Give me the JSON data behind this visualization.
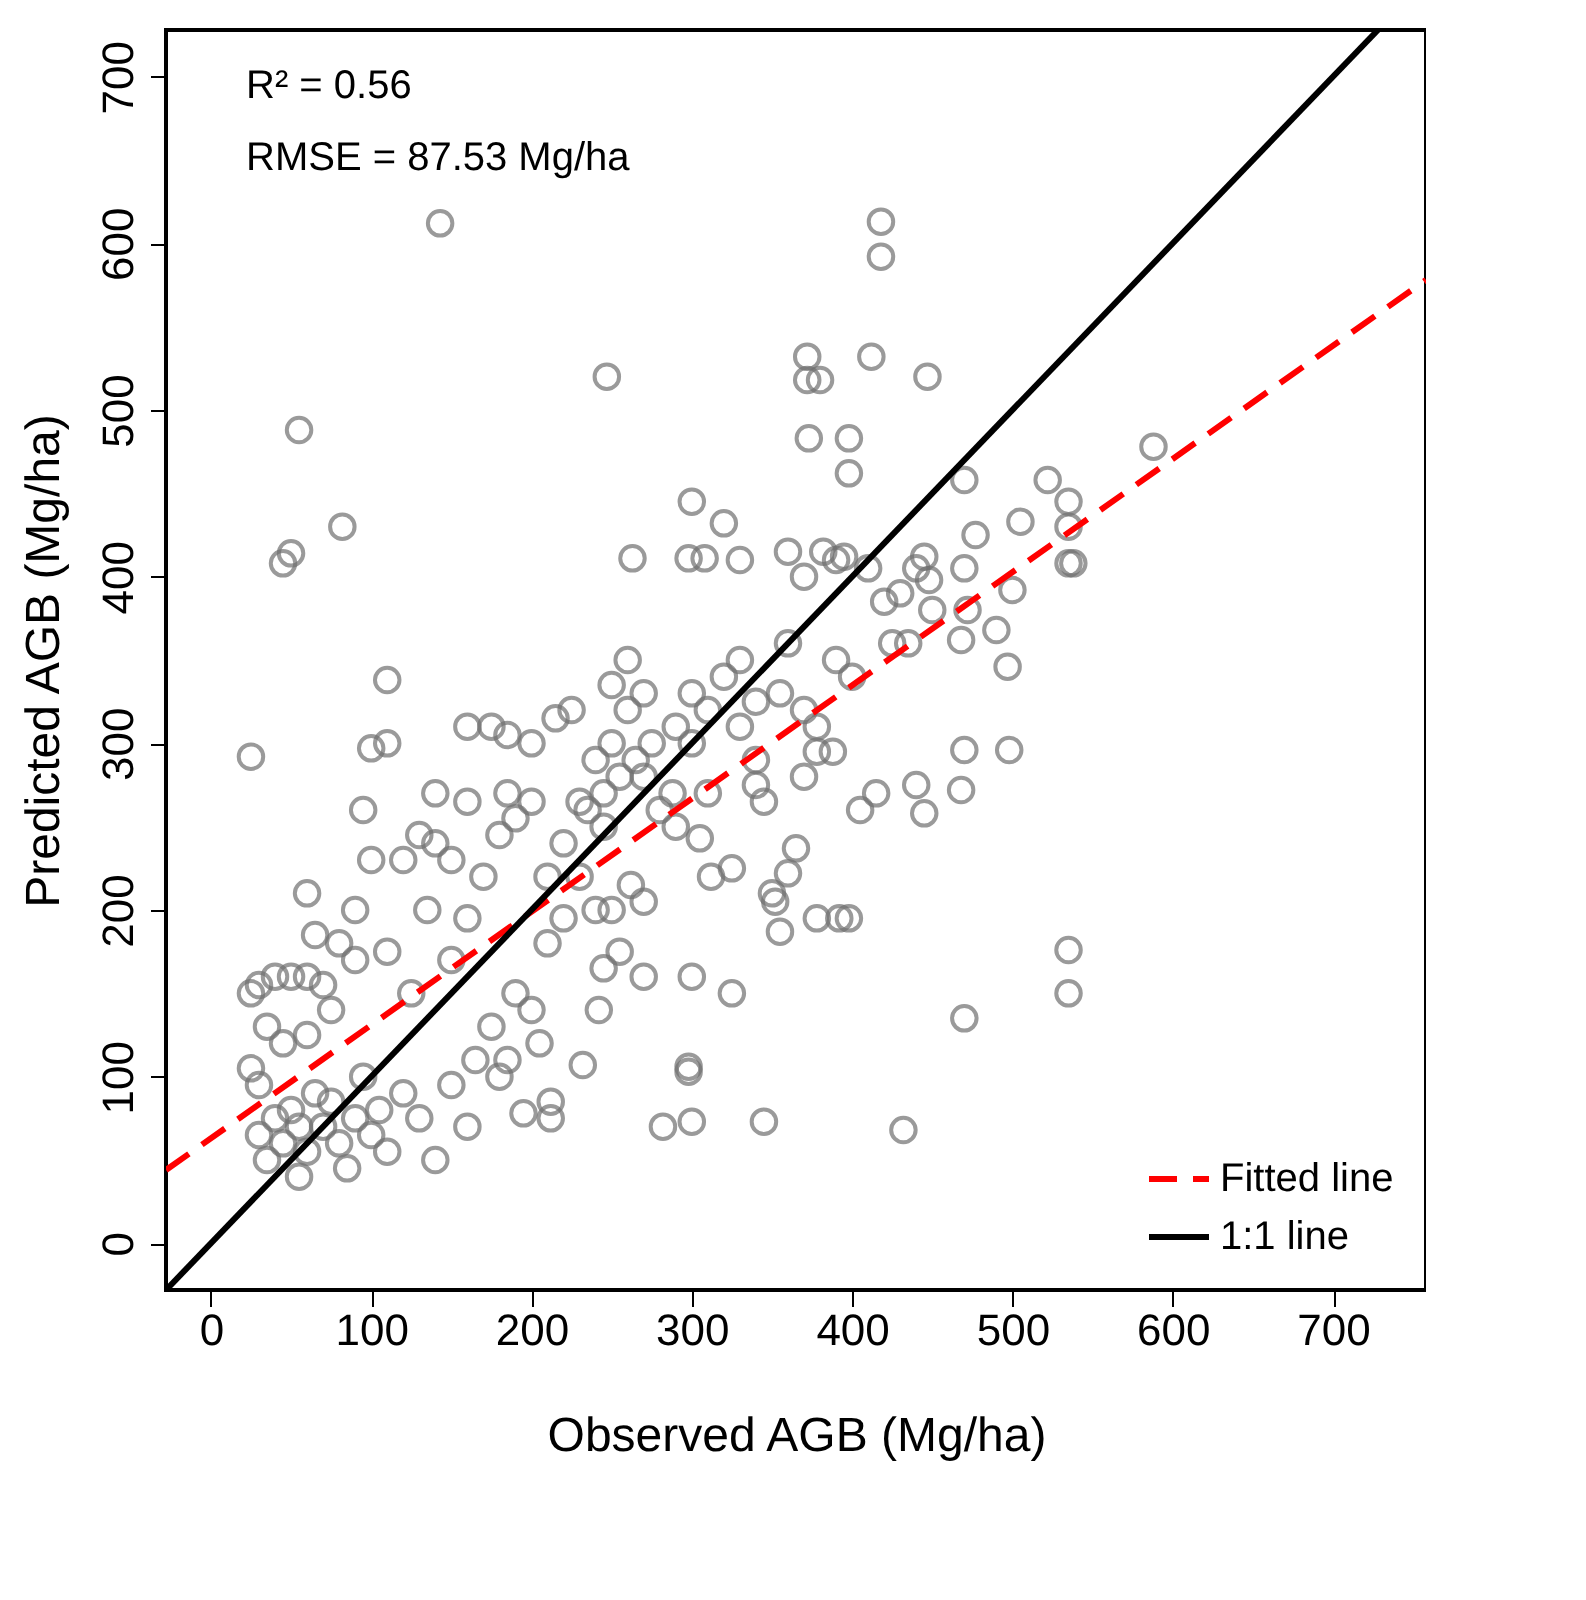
{
  "chart_data": {
    "type": "scatter",
    "xlabel": "Observed AGB (Mg/ha)",
    "ylabel": "Predicted AGB (Mg/ha)",
    "xlim": [
      -28,
      758
    ],
    "ylim": [
      -28,
      728
    ],
    "xticks": [
      0,
      100,
      200,
      300,
      400,
      500,
      600,
      700
    ],
    "yticks": [
      0,
      100,
      200,
      300,
      400,
      500,
      600,
      700
    ],
    "legend": "bottom right",
    "annotations": [
      "R² = 0.56",
      "RMSE = 87.53 Mg/ha"
    ],
    "series": [
      {
        "color": "#707070",
        "marker": "circle",
        "x": [
          143,
          55,
          82,
          45,
          50,
          25,
          110,
          100,
          110,
          247,
          418,
          418,
          372,
          412,
          447,
          372,
          380,
          373,
          398,
          398,
          320,
          300,
          263,
          298,
          308,
          330,
          470,
          522,
          535,
          505,
          535,
          477,
          535,
          538,
          500,
          470,
          445,
          440,
          450,
          472,
          490,
          468,
          435,
          497,
          535,
          535,
          470,
          432,
          415,
          440,
          445,
          468,
          470,
          498,
          405,
          588,
          448,
          430,
          345,
          300,
          282,
          298,
          298,
          392,
          398,
          378,
          350,
          352,
          355,
          360,
          365,
          345,
          340,
          370,
          378,
          388,
          300,
          325,
          312,
          325,
          305,
          288,
          262,
          270,
          250,
          255,
          270,
          245,
          242,
          232,
          212,
          212,
          195,
          205,
          185,
          30,
          35,
          40,
          45,
          50,
          55,
          55,
          60,
          65,
          70,
          75,
          80,
          85,
          90,
          95,
          100,
          105,
          110,
          120,
          130,
          140,
          150,
          160,
          165,
          175,
          180,
          190,
          200,
          210,
          220,
          230,
          240,
          235,
          245,
          255,
          265,
          275,
          290,
          300,
          310,
          320,
          330,
          340,
          355,
          360,
          370,
          378,
          390,
          400,
          370,
          360,
          382,
          390,
          395,
          410,
          420,
          425,
          200,
          185,
          175,
          160,
          150,
          140,
          130,
          120,
          100,
          90,
          80,
          70,
          60,
          50,
          40,
          30,
          25,
          35,
          45,
          60,
          75,
          90,
          110,
          125,
          135,
          150,
          160,
          170,
          180,
          190,
          200,
          210,
          220,
          230,
          240,
          250,
          260,
          270,
          280,
          290,
          300,
          310,
          330,
          340,
          260,
          250,
          225,
          215,
          185,
          60,
          30,
          25,
          65,
          95,
          140,
          160,
          245,
          270
        ],
        "values": [
          612,
          488,
          430,
          408,
          414,
          292,
          338,
          297,
          300,
          520,
          613,
          592,
          532,
          532,
          520,
          518,
          518,
          483,
          483,
          462,
          432,
          445,
          411,
          411,
          411,
          410,
          458,
          458,
          445,
          433,
          430,
          425,
          408,
          408,
          392,
          405,
          412,
          405,
          380,
          380,
          368,
          362,
          360,
          346,
          176,
          150,
          135,
          68,
          270,
          275,
          258,
          272,
          296,
          296,
          260,
          478,
          398,
          390,
          73,
          73,
          70,
          106,
          103,
          195,
          195,
          195,
          210,
          205,
          187,
          222,
          237,
          265,
          275,
          280,
          295,
          295,
          160,
          150,
          220,
          225,
          243,
          270,
          215,
          205,
          200,
          175,
          160,
          165,
          140,
          107,
          85,
          75,
          78,
          120,
          110,
          65,
          50,
          75,
          60,
          80,
          70,
          40,
          55,
          90,
          70,
          85,
          60,
          45,
          75,
          100,
          65,
          80,
          55,
          90,
          75,
          50,
          95,
          70,
          110,
          130,
          100,
          150,
          140,
          180,
          195,
          220,
          200,
          260,
          270,
          280,
          290,
          300,
          310,
          330,
          320,
          340,
          350,
          325,
          330,
          360,
          320,
          310,
          350,
          340,
          400,
          415,
          415,
          410,
          412,
          405,
          385,
          360,
          300,
          305,
          310,
          310,
          230,
          240,
          245,
          230,
          230,
          200,
          180,
          155,
          160,
          160,
          160,
          155,
          150,
          130,
          120,
          125,
          140,
          170,
          175,
          150,
          200,
          170,
          195,
          220,
          245,
          255,
          265,
          220,
          240,
          265,
          290,
          300,
          320,
          280,
          260,
          250,
          300,
          270,
          310,
          290,
          350,
          335,
          320,
          315,
          270,
          210,
          95,
          105,
          185,
          260,
          270,
          265,
          250,
          330
        ]
      },
      {
        "type": "line",
        "name": "Fitted line",
        "color": "#ff0000",
        "line_style": "dashed",
        "x": [
          -28,
          758
        ],
        "values": [
          44,
          578
        ]
      },
      {
        "type": "line",
        "name": "1:1 line",
        "color": "#000000",
        "line_style": "solid",
        "x": [
          -28,
          728
        ],
        "values": [
          -28,
          728
        ]
      }
    ]
  }
}
